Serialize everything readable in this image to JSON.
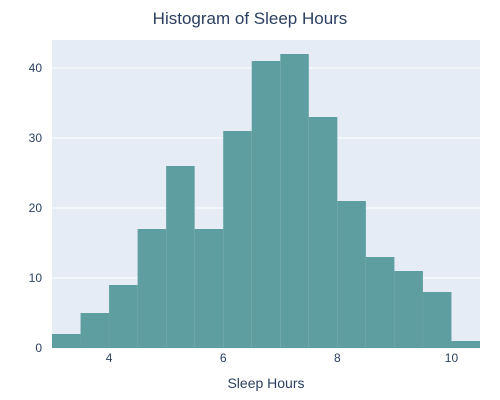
{
  "chart_data": {
    "type": "bar",
    "title": "Histogram of Sleep Hours",
    "xlabel": "Sleep Hours",
    "ylabel": "",
    "bin_edges": [
      3,
      3.5,
      4,
      4.5,
      5,
      5.5,
      6,
      6.5,
      7,
      7.5,
      8,
      8.5,
      9,
      9.5,
      10,
      10.5
    ],
    "values": [
      2,
      5,
      9,
      17,
      26,
      17,
      31,
      41,
      42,
      33,
      21,
      13,
      11,
      8,
      1
    ],
    "xlim": [
      3,
      10.5
    ],
    "ylim": [
      0,
      44
    ],
    "x_ticks": [
      4,
      6,
      8,
      10
    ],
    "y_ticks": [
      0,
      10,
      20,
      30,
      40
    ],
    "grid": true,
    "colors": {
      "bar": "#5f9ea0",
      "plot_bg": "#e5ecf6",
      "grid": "#ffffff",
      "text": "#2a3f5f"
    }
  }
}
